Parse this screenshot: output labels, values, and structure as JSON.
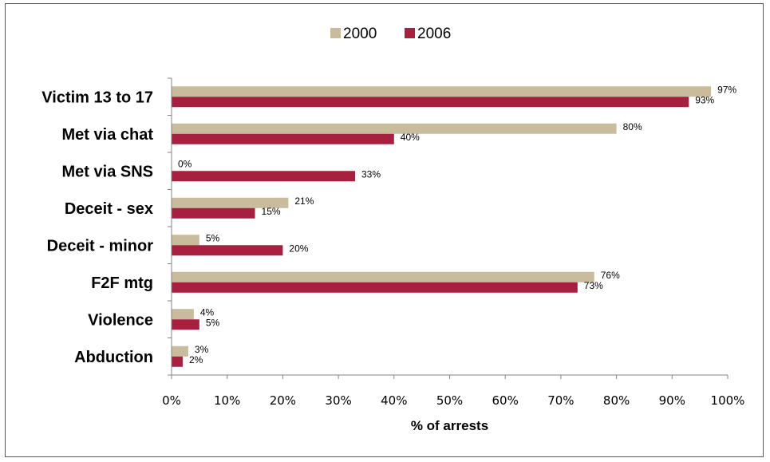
{
  "chart_data": {
    "type": "bar",
    "orientation": "horizontal",
    "categories": [
      "Victim 13 to 17",
      "Met via chat",
      "Met via SNS",
      "Deceit - sex",
      "Deceit - minor",
      "F2F mtg",
      "Violence",
      "Abduction"
    ],
    "series": [
      {
        "name": "2000",
        "color": "#c9bc9c",
        "values": [
          97,
          80,
          0,
          21,
          5,
          76,
          4,
          3
        ],
        "labels": [
          "97%",
          "80%",
          "0%",
          "21%",
          "5%",
          "76%",
          "4%",
          "3%"
        ]
      },
      {
        "name": "2006",
        "color": "#a8203f",
        "values": [
          93,
          40,
          33,
          15,
          20,
          73,
          5,
          2
        ],
        "labels": [
          "93%",
          "40%",
          "33%",
          "15%",
          "20%",
          "73%",
          "5%",
          "2%"
        ]
      }
    ],
    "xlim": [
      0,
      100
    ],
    "xticks": [
      "0%",
      "10%",
      "20%",
      "30%",
      "40%",
      "50%",
      "60%",
      "70%",
      "80%",
      "90%",
      "100%"
    ],
    "xlabel": "% of arrests",
    "ylabel": "",
    "title": "",
    "legend_position": "top",
    "grid": false
  }
}
